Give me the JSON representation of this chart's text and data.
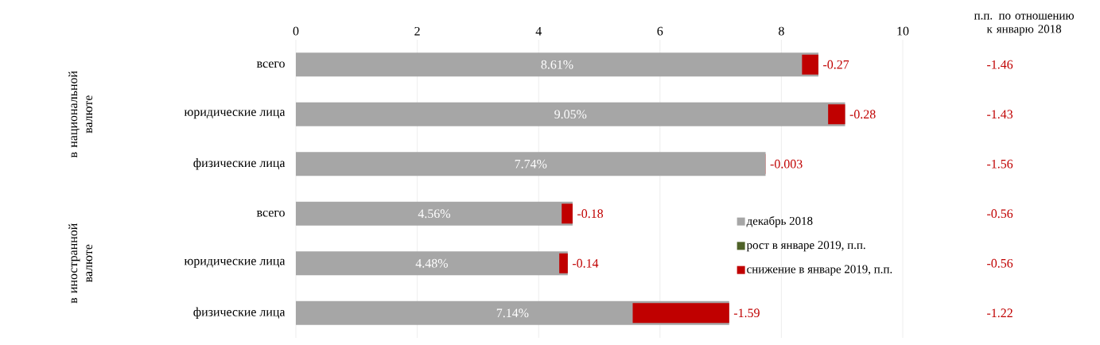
{
  "chart_data": {
    "type": "bar",
    "orientation": "horizontal",
    "categories": [
      "всего",
      "юридические лица",
      "физические лица",
      "всего",
      "юридические лица",
      "физические лица"
    ],
    "series": [
      {
        "name": "декабрь 2018",
        "color": "#a6a6a6",
        "values": [
          8.61,
          9.05,
          7.74,
          4.56,
          4.48,
          7.14
        ],
        "value_labels": [
          "8.61%",
          "9.05%",
          "7.74%",
          "4.56%",
          "4.48%",
          "7.14%"
        ]
      },
      {
        "name": "рост в январе 2019, п.п.",
        "color": "#4f6228",
        "values": [
          null,
          null,
          null,
          null,
          null,
          null
        ]
      },
      {
        "name": "снижение в январе 2019, п.п.",
        "color": "#c00000",
        "base": [
          8.61,
          9.05,
          7.74,
          4.56,
          4.48,
          7.14
        ],
        "values": [
          -0.27,
          -0.28,
          -0.003,
          -0.18,
          -0.14,
          -1.59
        ]
      }
    ],
    "data_labels": true,
    "xlim": [
      0,
      10
    ],
    "xticks": [
      0,
      2,
      4,
      6,
      8,
      10
    ],
    "grid": "x",
    "legend": "bottom right",
    "annotations": [
      "п.п. по отношению к январю 2018",
      "-1.46",
      "-1.43",
      "-1.56",
      "-0.56",
      "-0.56",
      "-1.22",
      "в национальной валюте",
      "в иностранной валюте"
    ]
  }
}
